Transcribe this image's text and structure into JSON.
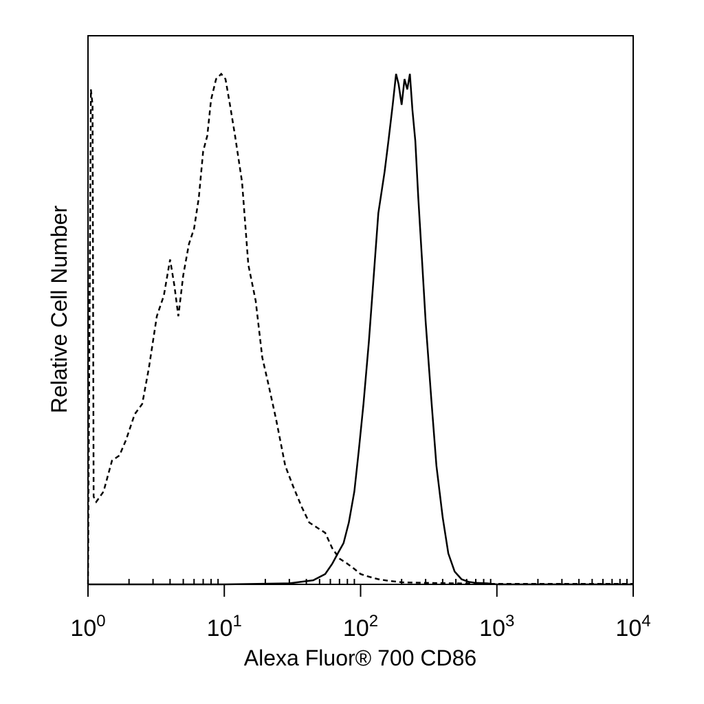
{
  "chart_data": {
    "type": "line",
    "title": "",
    "xlabel": "Alexa Fluor® 700 CD86",
    "ylabel": "Relative Cell Number",
    "x_scale": "log",
    "xlim": [
      1,
      10000
    ],
    "ylim": [
      0,
      100
    ],
    "grid": false,
    "legend": "none",
    "x_ticks": [
      {
        "base": "10",
        "exp": "0",
        "value": 1
      },
      {
        "base": "10",
        "exp": "1",
        "value": 10
      },
      {
        "base": "10",
        "exp": "2",
        "value": 100
      },
      {
        "base": "10",
        "exp": "3",
        "value": 1000
      },
      {
        "base": "10",
        "exp": "4",
        "value": 10000
      }
    ],
    "series": [
      {
        "style": "dashed",
        "color": "#000000",
        "x": [
          1.0,
          1.05,
          1.08,
          1.1,
          1.15,
          1.3,
          1.5,
          1.7,
          1.9,
          2.2,
          2.5,
          2.8,
          3.2,
          3.6,
          4.0,
          4.3,
          4.6,
          5.0,
          5.5,
          6.0,
          6.5,
          7.0,
          7.5,
          8.0,
          8.7,
          9.5,
          10.2,
          11.0,
          12.0,
          13.5,
          15.0,
          17.0,
          19.0,
          21.0,
          24.0,
          28.0,
          32.0,
          37.0,
          42.0,
          48.0,
          55.0,
          62.0,
          70.0,
          80.0,
          90.0,
          100.0,
          115.0,
          135.0,
          160.0,
          200.0,
          300.0,
          500.0,
          800.0,
          1000.0,
          10000.0
        ],
        "values": [
          0,
          96,
          93,
          17,
          16,
          18,
          24,
          25,
          28,
          33,
          35,
          42,
          52,
          56,
          63,
          58,
          52,
          60,
          66,
          69,
          75,
          84,
          87,
          94,
          98,
          99,
          98,
          93,
          87,
          78,
          62,
          55,
          44,
          39,
          32,
          23,
          19,
          15,
          12,
          11,
          10,
          7,
          5,
          4,
          3,
          2,
          1.5,
          1,
          0.7,
          0.4,
          0.3,
          0.2,
          0.1,
          0.1,
          0.1
        ]
      },
      {
        "style": "solid",
        "color": "#000000",
        "x": [
          1.0,
          10.0,
          30.0,
          45.0,
          55.0,
          62.0,
          68.0,
          75.0,
          82.0,
          90.0,
          97.0,
          105.0,
          115.0,
          125.0,
          135.0,
          150.0,
          160.0,
          172.0,
          182.0,
          190.0,
          200.0,
          210.0,
          220.0,
          230.0,
          240.0,
          252.0,
          265.0,
          282.0,
          300.0,
          330.0,
          360.0,
          400.0,
          440.0,
          490.0,
          550.0,
          620.0,
          700.0,
          850.0,
          1000.0,
          10000.0
        ],
        "values": [
          0,
          0,
          0.2,
          0.8,
          2,
          4,
          6,
          8,
          12,
          18,
          26,
          35,
          47,
          60,
          72,
          80,
          86,
          93,
          99,
          97,
          93,
          98,
          96,
          99,
          92,
          86,
          75,
          63,
          51,
          36,
          23,
          13,
          6,
          2.5,
          1,
          0.5,
          0.3,
          0.2,
          0,
          0
        ]
      }
    ]
  }
}
